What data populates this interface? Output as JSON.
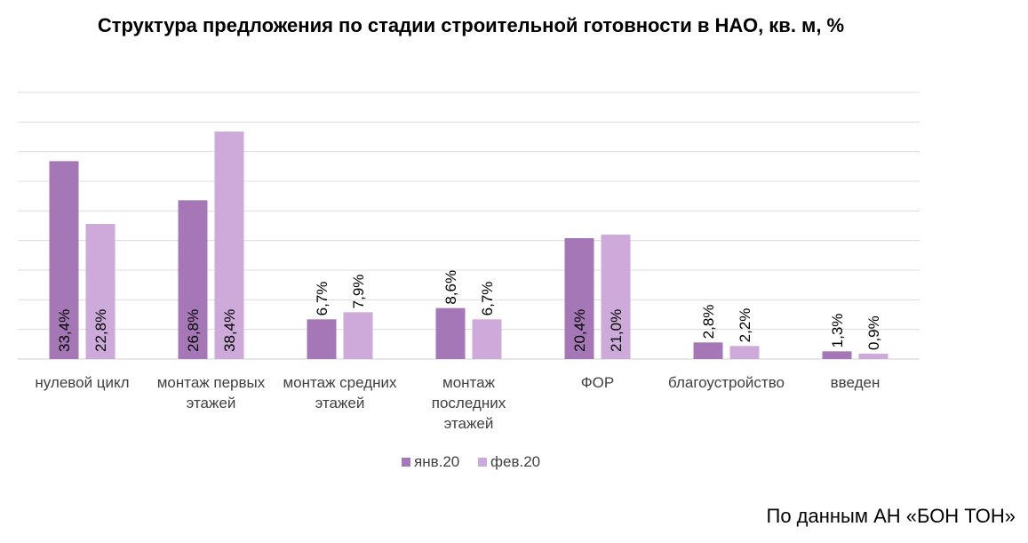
{
  "chart_data": {
    "type": "bar",
    "title": "Структура предложения по стадии строительной готовности в НАО, кв. м, %",
    "categories": [
      [
        "нулевой цикл"
      ],
      [
        "монтаж первых",
        "этажей"
      ],
      [
        "монтаж средних",
        "этажей"
      ],
      [
        "монтаж",
        "последних",
        "этажей"
      ],
      [
        "ФОР"
      ],
      [
        "благоустройство"
      ],
      [
        "введен"
      ]
    ],
    "series": [
      {
        "name": "янв.20",
        "color": "#a677b7",
        "values": [
          33.4,
          26.8,
          6.7,
          8.6,
          20.4,
          2.8,
          1.3
        ],
        "labels": [
          "33,4%",
          "26,8%",
          "6,7%",
          "8,6%",
          "20,4%",
          "2,8%",
          "1,3%"
        ]
      },
      {
        "name": "фев.20",
        "color": "#cdaad9",
        "values": [
          22.8,
          38.4,
          7.9,
          6.7,
          21.0,
          2.2,
          0.9
        ],
        "labels": [
          "22,8%",
          "38,4%",
          "7,9%",
          "6,7%",
          "21,0%",
          "2,2%",
          "0,9%"
        ]
      }
    ],
    "ylim": [
      0,
      45
    ],
    "grid": true,
    "legend": "bottom"
  },
  "source_note": "По данным АН «БОН ТОН»"
}
